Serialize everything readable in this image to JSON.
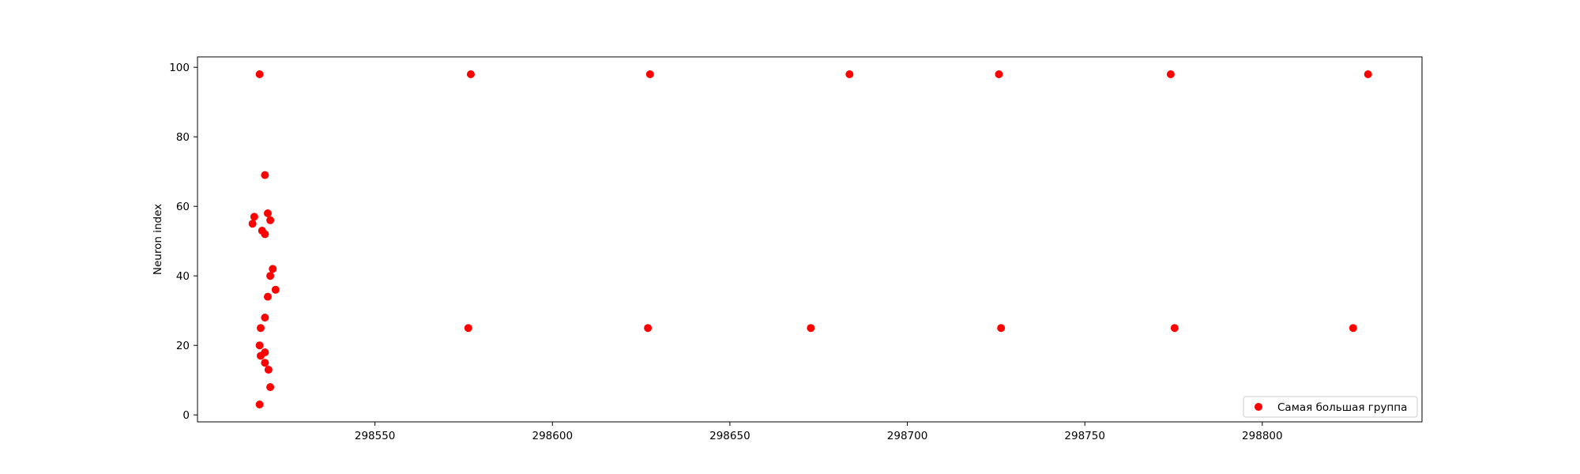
{
  "chart_data": {
    "type": "scatter",
    "title": "",
    "xlabel": "",
    "ylabel": "Neuron index",
    "xlim": [
      298500,
      298845
    ],
    "ylim": [
      -2,
      103
    ],
    "xticks": [
      298550,
      298600,
      298650,
      298700,
      298750,
      298800
    ],
    "yticks": [
      0,
      20,
      40,
      60,
      80,
      100
    ],
    "grid": false,
    "legend_position": "lower-right",
    "series": [
      {
        "name": "Самая большая группа",
        "color": "#ff0000",
        "points": [
          [
            298517.5,
            98
          ],
          [
            298577.0,
            98
          ],
          [
            298627.5,
            98
          ],
          [
            298683.7,
            98
          ],
          [
            298725.8,
            98
          ],
          [
            298774.2,
            98
          ],
          [
            298829.8,
            98
          ],
          [
            298576.3,
            25
          ],
          [
            298626.9,
            25
          ],
          [
            298672.8,
            25
          ],
          [
            298726.4,
            25
          ],
          [
            298775.3,
            25
          ],
          [
            298825.6,
            25
          ],
          [
            298519.0,
            69
          ],
          [
            298516.0,
            57
          ],
          [
            298519.8,
            58
          ],
          [
            298515.5,
            55
          ],
          [
            298520.5,
            56
          ],
          [
            298518.2,
            53
          ],
          [
            298519.0,
            52
          ],
          [
            298521.2,
            42
          ],
          [
            298520.5,
            40
          ],
          [
            298522.0,
            36
          ],
          [
            298519.8,
            34
          ],
          [
            298519.0,
            28
          ],
          [
            298517.8,
            25
          ],
          [
            298517.5,
            20
          ],
          [
            298519.0,
            18
          ],
          [
            298517.8,
            17
          ],
          [
            298519.0,
            15
          ],
          [
            298520.0,
            13
          ],
          [
            298520.5,
            8
          ],
          [
            298517.5,
            3
          ]
        ]
      }
    ]
  }
}
